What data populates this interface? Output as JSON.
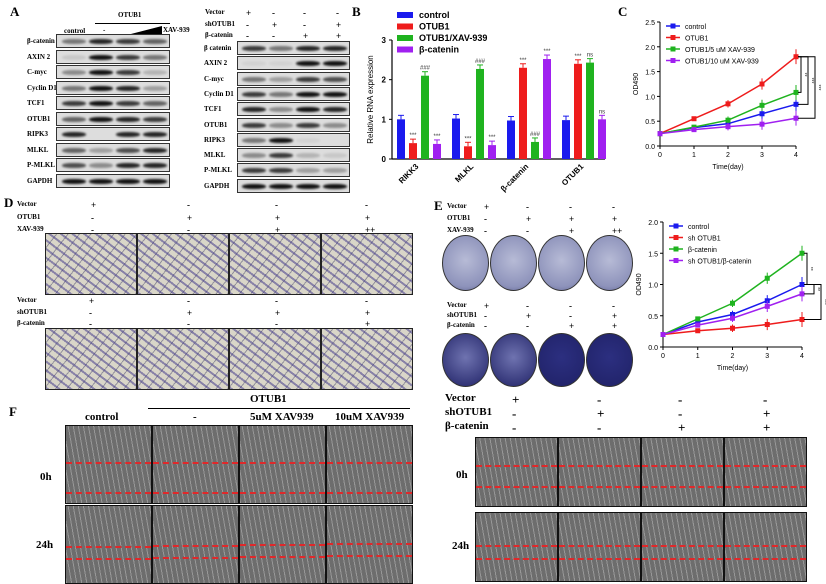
{
  "panels": {
    "A": {
      "letter": "A",
      "left": {
        "group_label": "OTUB1",
        "col_labels": [
          "control",
          "-"
        ],
        "treatment_label": "XAV-939",
        "rows": [
          "β-catenin",
          "AXIN 2",
          "C-myc",
          "Cyclin D1",
          "TCF1",
          "OTUB1",
          "RIPK3",
          "MLKL",
          "P-MLKL",
          "GAPDH"
        ]
      },
      "right": {
        "conditions": [
          {
            "name": "Vector",
            "marks": [
              "+",
              "-",
              "-",
              "-"
            ]
          },
          {
            "name": "shOTUB1",
            "marks": [
              "-",
              "+",
              "-",
              "+"
            ]
          },
          {
            "name": "β-catenin",
            "marks": [
              "-",
              "-",
              "+",
              "+"
            ]
          }
        ],
        "rows": [
          "β catenin",
          "AXIN 2",
          "C-myc",
          "Cyclin D1",
          "TCF1",
          "OTUB1",
          "RIPK3",
          "MLKL",
          "P-MLKL",
          "GAPDH"
        ]
      }
    },
    "B": {
      "letter": "B"
    },
    "C": {
      "letter": "C"
    },
    "D": {
      "letter": "D",
      "top_conditions": [
        {
          "name": "Vector",
          "marks": [
            "+",
            "-",
            "-",
            "-"
          ]
        },
        {
          "name": "OTUB1",
          "marks": [
            "-",
            "+",
            "+",
            "+"
          ]
        },
        {
          "name": "XAV-939",
          "marks": [
            "-",
            "-",
            "+",
            "++"
          ]
        }
      ],
      "bottom_conditions": [
        {
          "name": "Vector",
          "marks": [
            "+",
            "-",
            "-",
            "-"
          ]
        },
        {
          "name": "shOTUB1",
          "marks": [
            "-",
            "+",
            "+",
            "+"
          ]
        },
        {
          "name": "β-catenin",
          "marks": [
            "-",
            "-",
            "-",
            "+"
          ]
        }
      ]
    },
    "E": {
      "letter": "E",
      "top_conditions": [
        {
          "name": "Vector",
          "marks": [
            "+",
            "-",
            "-",
            "-"
          ]
        },
        {
          "name": "OTUB1",
          "marks": [
            "-",
            "+",
            "+",
            "+"
          ]
        },
        {
          "name": "XAV-939",
          "marks": [
            "-",
            "-",
            "+",
            "++"
          ]
        }
      ],
      "bottom_conditions": [
        {
          "name": "Vector",
          "marks": [
            "+",
            "-",
            "-",
            "-"
          ]
        },
        {
          "name": "shOTUB1",
          "marks": [
            "-",
            "+",
            "-",
            "+"
          ]
        },
        {
          "name": "β-catenin",
          "marks": [
            "-",
            "-",
            "+",
            "+"
          ]
        }
      ]
    },
    "F": {
      "letter": "F",
      "group_label": "OTUB1",
      "col_labels": [
        "control",
        "-",
        "5uM XAV939",
        "10uM XAV939"
      ],
      "time_labels": [
        "0h",
        "24h"
      ],
      "right_conditions": [
        {
          "name": "Vector",
          "marks": [
            "+",
            "-",
            "-",
            "-"
          ]
        },
        {
          "name": "shOTUB1",
          "marks": [
            "-",
            "+",
            "-",
            "+"
          ]
        },
        {
          "name": "β-catenin",
          "marks": [
            "-",
            "-",
            "+",
            "+"
          ]
        }
      ]
    }
  },
  "chart_data": [
    {
      "id": "B",
      "type": "bar",
      "categories": [
        "RIKK3",
        "MLKL",
        "β-catenin",
        "OTUB1"
      ],
      "ylabel": "Relative RNA expression",
      "ylim": [
        0,
        3
      ],
      "yticks": [
        "0",
        "1",
        "2",
        "3"
      ],
      "legend_position": "top-left",
      "series": [
        {
          "name": "control",
          "color": "#1a1aee",
          "values": [
            1.0,
            1.02,
            0.97,
            0.98
          ],
          "annotations": [
            "",
            "",
            "",
            ""
          ]
        },
        {
          "name": "OTUB1",
          "color": "#ee1c1c",
          "values": [
            0.4,
            0.32,
            2.3,
            2.4
          ],
          "annotations": [
            "***",
            "***",
            "***",
            "***"
          ]
        },
        {
          "name": "OTUB1/XAV-939",
          "color": "#1fb31f",
          "values": [
            2.1,
            2.27,
            0.43,
            2.43
          ],
          "annotations": [
            "###",
            "###",
            "###",
            "ns"
          ]
        },
        {
          "name": "β-catenin",
          "color": "#a020f0",
          "values": [
            0.38,
            0.35,
            2.52,
            1.0
          ],
          "annotations": [
            "***",
            "***",
            "***",
            "ns"
          ]
        }
      ]
    },
    {
      "id": "C",
      "type": "line",
      "x": [
        0,
        1,
        2,
        3,
        4
      ],
      "xlabel": "Time(day)",
      "ylabel": "OD490",
      "xlim": [
        0,
        4
      ],
      "ylim": [
        0,
        2.5
      ],
      "yticks": [
        "0.0",
        "0.5",
        "1.0",
        "1.5",
        "2.0",
        "2.5"
      ],
      "xticks": [
        "0",
        "1",
        "2",
        "3",
        "4"
      ],
      "legend_position": "top-left",
      "significance": [
        "**",
        "***",
        "***"
      ],
      "series": [
        {
          "name": "control",
          "color": "#1a1aee",
          "values": [
            0.25,
            0.37,
            0.45,
            0.65,
            0.84
          ]
        },
        {
          "name": "OTUB1",
          "color": "#ee1c1c",
          "values": [
            0.25,
            0.55,
            0.85,
            1.25,
            1.8
          ]
        },
        {
          "name": "OTUB1/5 uM XAV-939",
          "color": "#1fb31f",
          "values": [
            0.25,
            0.38,
            0.52,
            0.82,
            1.08
          ]
        },
        {
          "name": "OTUB1/10 uM XAV-939",
          "color": "#a020f0",
          "values": [
            0.25,
            0.33,
            0.39,
            0.44,
            0.56
          ]
        }
      ]
    },
    {
      "id": "E",
      "type": "line",
      "x": [
        0,
        1,
        2,
        3,
        4
      ],
      "xlabel": "Time(day)",
      "ylabel": "OD490",
      "xlim": [
        0,
        4
      ],
      "ylim": [
        0,
        2.0
      ],
      "yticks": [
        "0.0",
        "0.5",
        "1.0",
        "1.5",
        "2.0"
      ],
      "xticks": [
        "0",
        "1",
        "2",
        "3",
        "4"
      ],
      "legend_position": "top-left",
      "significance": [
        "**",
        "**",
        "***"
      ],
      "series": [
        {
          "name": "control",
          "color": "#1a1aee",
          "values": [
            0.2,
            0.4,
            0.52,
            0.74,
            1.0
          ]
        },
        {
          "name": "sh OTUB1",
          "color": "#ee1c1c",
          "values": [
            0.2,
            0.26,
            0.3,
            0.36,
            0.44
          ]
        },
        {
          "name": "β-catenin",
          "color": "#1fb31f",
          "values": [
            0.2,
            0.45,
            0.7,
            1.1,
            1.5
          ]
        },
        {
          "name": "sh OTUB1/β-catenin",
          "color": "#a020f0",
          "values": [
            0.2,
            0.35,
            0.46,
            0.65,
            0.85
          ]
        }
      ]
    }
  ]
}
